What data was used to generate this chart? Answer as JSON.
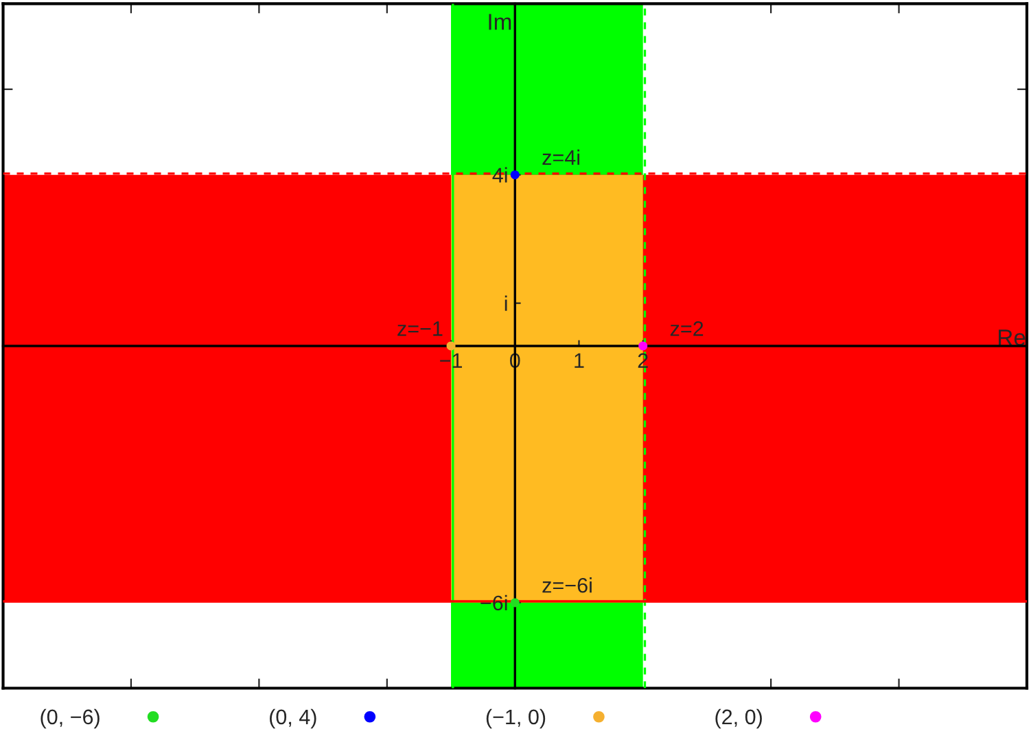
{
  "chart_data": {
    "type": "scatter",
    "xlabel": "Re",
    "ylabel": "Im",
    "xlim": [
      -8,
      8
    ],
    "ylim": [
      -8,
      8
    ],
    "xticks": [
      {
        "value": -6,
        "label": null
      },
      {
        "value": -4,
        "label": null
      },
      {
        "value": -2,
        "label": null
      },
      {
        "value": -1,
        "label": "−1"
      },
      0,
      1,
      2,
      {
        "value": 4,
        "label": null
      },
      {
        "value": 6,
        "label": null
      }
    ],
    "yticks": [
      {
        "value": -6,
        "label": "−6i"
      },
      {
        "value": -4,
        "label": null
      },
      {
        "value": -2,
        "label": null
      },
      {
        "value": 1,
        "label": "i"
      },
      {
        "value": 2,
        "label": null
      },
      {
        "value": 4,
        "label": "4i"
      },
      {
        "value": 6,
        "label": null
      }
    ],
    "bands": [
      {
        "axis": "x",
        "from": -1,
        "to": 2,
        "color": "#00ff00"
      },
      {
        "axis": "y",
        "from": -6,
        "to": 4,
        "color": "#ff0000"
      },
      {
        "axis": "x",
        "from": -1,
        "to": 2,
        "color": "#ffbb22"
      }
    ],
    "ref_lines": [
      {
        "axis": "x",
        "value": -1,
        "color": "#00ff00",
        "line_style": "solid"
      },
      {
        "axis": "x",
        "value": 2,
        "color": "#00ff00",
        "line_style": "dashed"
      },
      {
        "axis": "y",
        "value": 4,
        "color": "#ff0000",
        "line_style": "dashed"
      },
      {
        "axis": "y",
        "value": -6,
        "color": "#ff0000",
        "line_style": "solid"
      }
    ],
    "series": [
      {
        "name": "(0, −6)",
        "color": "#22dd22",
        "x": [
          0
        ],
        "values": [
          -6
        ]
      },
      {
        "name": "(0, 4)",
        "color": "#0000ff",
        "x": [
          0
        ],
        "values": [
          4
        ]
      },
      {
        "name": "(−1, 0)",
        "color": "#f5b030",
        "x": [
          -1
        ],
        "values": [
          0
        ]
      },
      {
        "name": "(2, 0)",
        "color": "#ff00ff",
        "x": [
          2
        ],
        "values": [
          0
        ]
      }
    ],
    "annotations": [
      {
        "text": "z=4i",
        "x": 0,
        "y": 4
      },
      {
        "text": "z=−1",
        "x": -1,
        "y": 0
      },
      {
        "text": "z=2",
        "x": 2,
        "y": 0
      },
      {
        "text": "z=−6i",
        "x": 0,
        "y": -6
      }
    ],
    "marker": "circle",
    "legend": "bottom",
    "grid": false
  }
}
